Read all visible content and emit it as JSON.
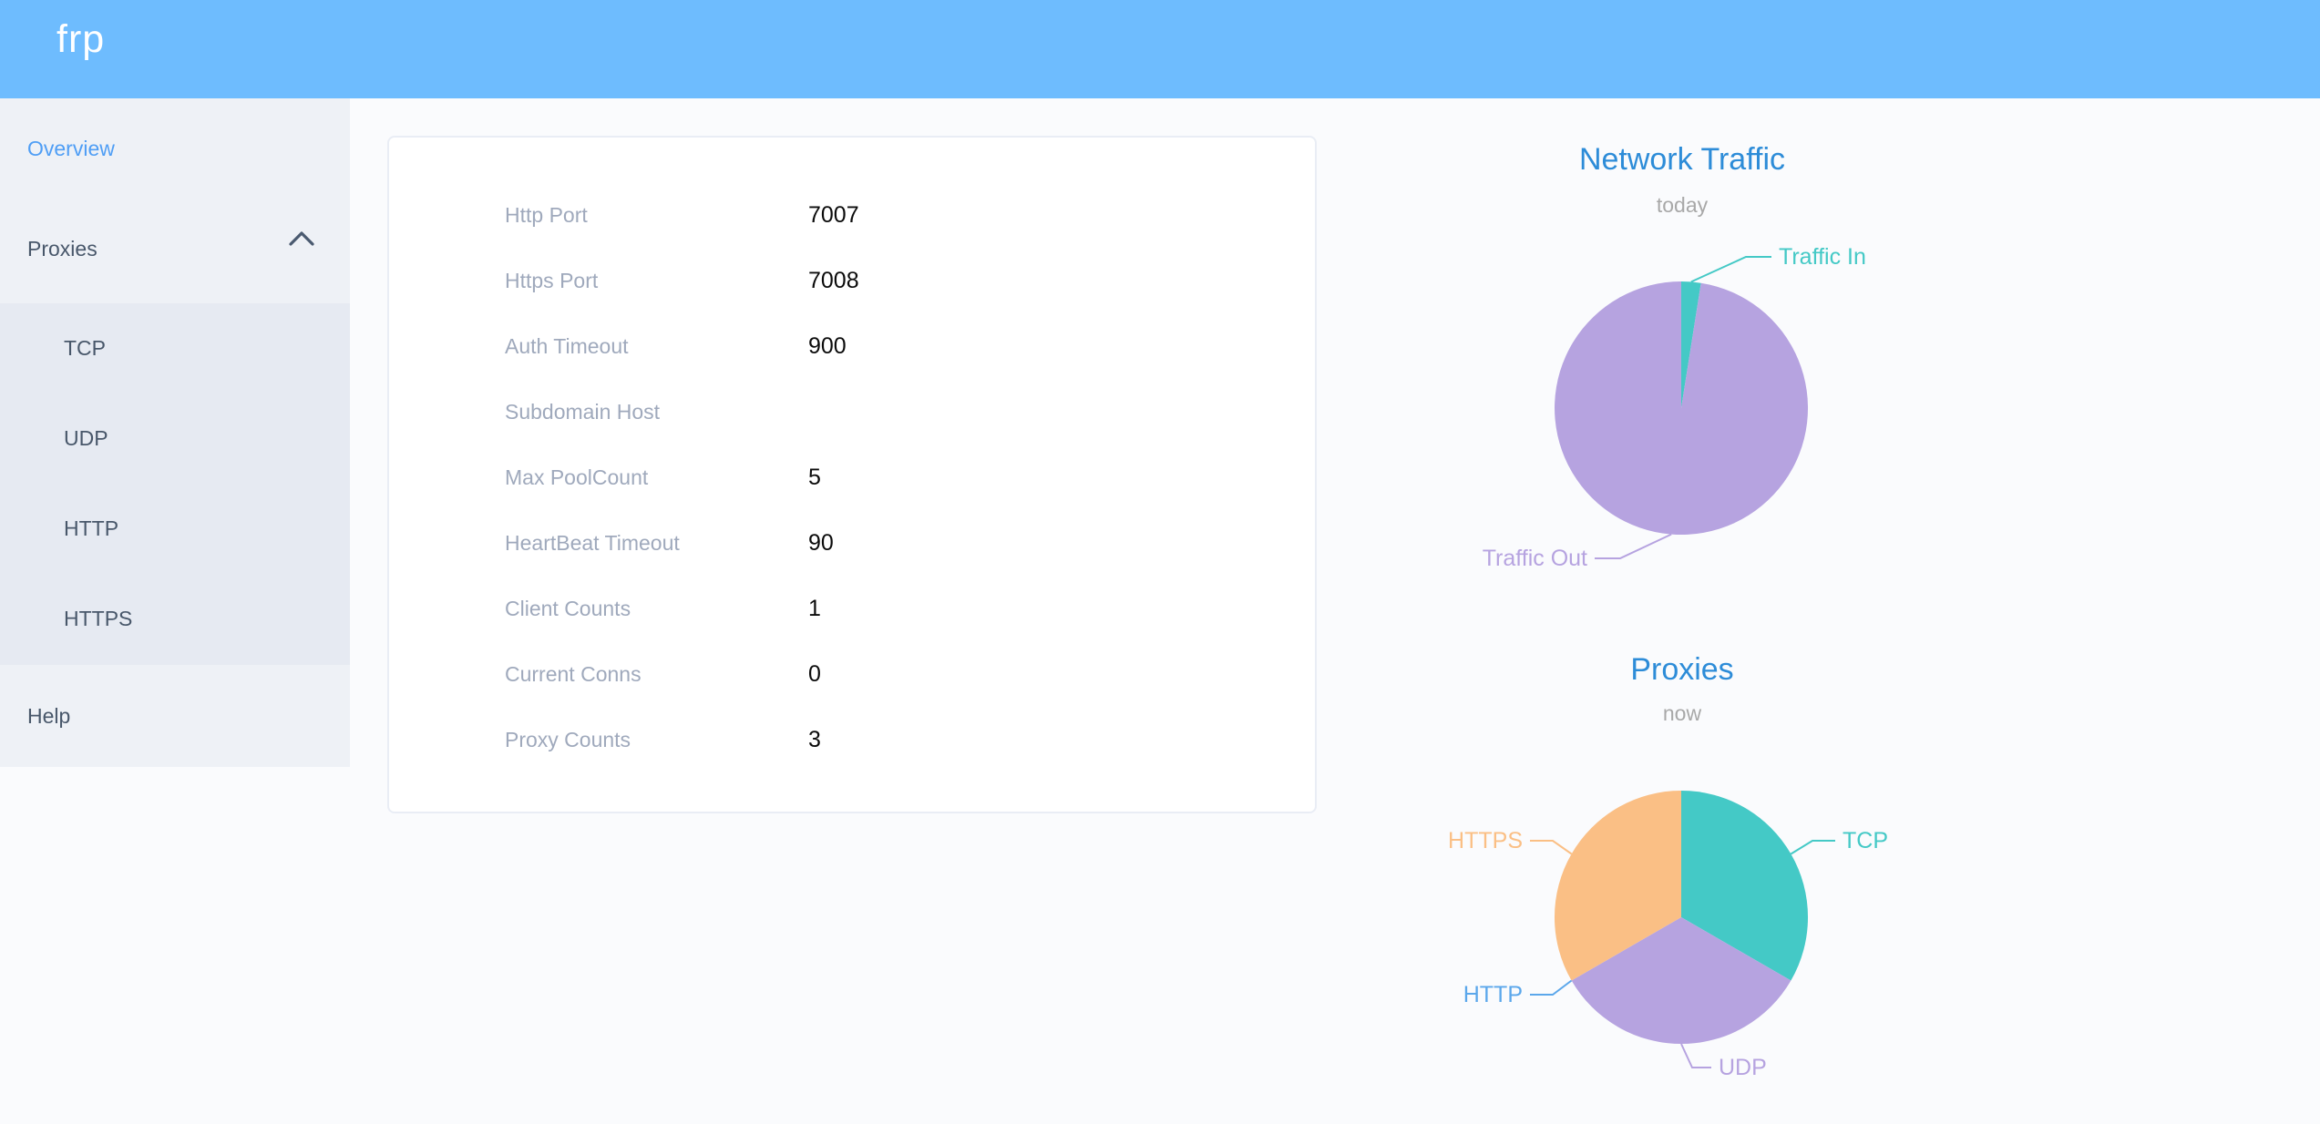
{
  "app": {
    "logo_text": "frp"
  },
  "colors": {
    "header_bg": "#6ebcfe",
    "sidebar_bg": "#eef1f6",
    "submenu_bg": "#e6eaf2",
    "menu_text": "#48576a",
    "menu_active": "#4f9ef5",
    "chart_title_blue": "#2d8cd8",
    "teal": "#44c9c6",
    "purple": "#b6a3e0",
    "orange": "#fabf85",
    "blue": "#5ba7eb",
    "table_label_gray": "#9fa9bc"
  },
  "sidebar": {
    "items": [
      {
        "label": "Overview",
        "active": true
      },
      {
        "label": "Proxies",
        "expanded": true,
        "icon": "chevron-up",
        "children": [
          "TCP",
          "UDP",
          "HTTP",
          "HTTPS"
        ]
      },
      {
        "label": "Help",
        "active": false
      }
    ]
  },
  "overview_table": {
    "rows": [
      {
        "label": "Http Port",
        "value": "7007"
      },
      {
        "label": "Https Port",
        "value": "7008"
      },
      {
        "label": "Auth Timeout",
        "value": "900"
      },
      {
        "label": "Subdomain Host",
        "value": ""
      },
      {
        "label": "Max PoolCount",
        "value": "5"
      },
      {
        "label": "HeartBeat Timeout",
        "value": "90"
      },
      {
        "label": "Client Counts",
        "value": "1"
      },
      {
        "label": "Current Conns",
        "value": "0"
      },
      {
        "label": "Proxy Counts",
        "value": "3"
      }
    ]
  },
  "chart_data": [
    {
      "type": "pie",
      "title": "Network Traffic",
      "subtitle": "today",
      "legend_position": "none",
      "label_position": "outside",
      "series": [
        {
          "name": "Traffic In",
          "value": 2.5,
          "color": "#44c9c6"
        },
        {
          "name": "Traffic Out",
          "value": 97.5,
          "color": "#b6a3e0"
        }
      ]
    },
    {
      "type": "pie",
      "title": "Proxies",
      "subtitle": "now",
      "legend_position": "none",
      "label_position": "outside",
      "series": [
        {
          "name": "TCP",
          "value": 1,
          "color": "#44c9c6"
        },
        {
          "name": "UDP",
          "value": 1,
          "color": "#b6a3e0"
        },
        {
          "name": "HTTP",
          "value": 0,
          "color": "#5ba7eb"
        },
        {
          "name": "HTTPS",
          "value": 1,
          "color": "#fabf85"
        }
      ]
    }
  ]
}
